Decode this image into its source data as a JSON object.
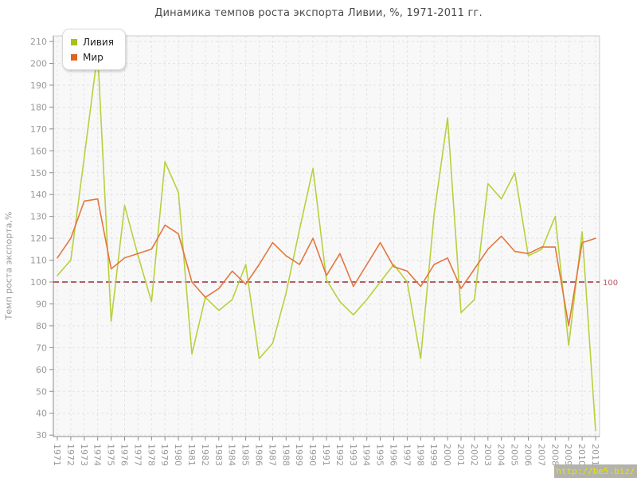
{
  "title": "Динамика темпов роста экспорта Ливии, %, 1971-2011 гг.",
  "y_axis": {
    "label": "Темп роста экспорта,%"
  },
  "legend": {
    "items": [
      {
        "label": "Ливия",
        "color": "#a3c31c"
      },
      {
        "label": "Мир",
        "color": "#e2631d"
      }
    ]
  },
  "ref_line": {
    "value": 100,
    "label": "100",
    "color": "#b06068",
    "label_color": "#b5565e"
  },
  "watermark": {
    "text": "http://be5.biz/"
  },
  "colors": {
    "libya_line": "#b8d03e",
    "world_line": "#e4763e",
    "grid": "#e3e3e3",
    "axis": "#8c8c8c",
    "plot_border": "#cccccc",
    "plot_bg": "#f8f8f8",
    "tick_text": "#999999"
  },
  "chart_data": {
    "type": "line",
    "title": "Динамика темпов роста экспорта Ливии, %, 1971-2011 гг.",
    "ylabel": "Темп роста экспорта,%",
    "ylim": [
      30,
      210
    ],
    "y_ticks": [
      210,
      200,
      190,
      180,
      170,
      160,
      150,
      140,
      130,
      120,
      110,
      100,
      90,
      80,
      70,
      60,
      50,
      40,
      30
    ],
    "grid": true,
    "legend_position": "top-left",
    "ref_line": 100,
    "x": [
      1971,
      1972,
      1973,
      1974,
      1975,
      1976,
      1977,
      1978,
      1979,
      1980,
      1981,
      1982,
      1983,
      1984,
      1985,
      1986,
      1987,
      1988,
      1989,
      1990,
      1991,
      1992,
      1993,
      1994,
      1995,
      1996,
      1997,
      1998,
      1999,
      2000,
      2001,
      2002,
      2003,
      2004,
      2005,
      2006,
      2007,
      2008,
      2009,
      2010,
      2011
    ],
    "series": [
      {
        "name": "Ливия",
        "color": "#b8d03e",
        "values": [
          103,
          110,
          157,
          205,
          82,
          135,
          112,
          91,
          155,
          141,
          67,
          93,
          87,
          92,
          108,
          65,
          72,
          95,
          124,
          152,
          101,
          91,
          85,
          92,
          100,
          108,
          100,
          65,
          131,
          175,
          86,
          92,
          145,
          138,
          150,
          112,
          115,
          130,
          71,
          123,
          32
        ]
      },
      {
        "name": "Мир",
        "color": "#e4763e",
        "values": [
          111,
          120,
          137,
          138,
          106,
          111,
          113,
          115,
          126,
          122,
          100,
          93,
          97,
          105,
          99,
          108,
          118,
          112,
          108,
          120,
          103,
          113,
          98,
          108,
          118,
          107,
          105,
          98,
          108,
          111,
          97,
          106,
          115,
          121,
          114,
          113,
          116,
          116,
          80,
          118,
          120
        ]
      }
    ]
  }
}
